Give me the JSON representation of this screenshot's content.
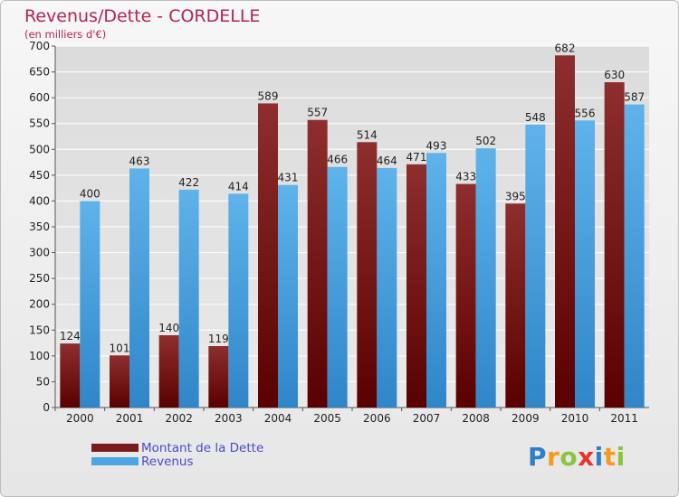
{
  "header": {
    "title": "Revenus/Dette - CORDELLE",
    "subtitle": "(en milliers d'€)"
  },
  "colors": {
    "dette": "#7a1b1b",
    "revenus": "#4aa6e3",
    "title": "#b2235a",
    "legend_text": "#4a4acb",
    "grid": "#ffffff"
  },
  "legend": {
    "position": "bottom-left",
    "items": [
      {
        "label": "Montant de la Dette",
        "color": "#7a1b1b"
      },
      {
        "label": "Revenus",
        "color": "#4aa6e3"
      }
    ]
  },
  "logo": {
    "letters": [
      {
        "char": "P",
        "color": "#2e7fc8"
      },
      {
        "char": "r",
        "color": "#f39a1f"
      },
      {
        "char": "o",
        "color": "#8bc53f"
      },
      {
        "char": "x",
        "color": "#e8332c"
      },
      {
        "char": "i",
        "color": "#2e7fc8"
      },
      {
        "char": "t",
        "color": "#f39a1f"
      },
      {
        "char": "i",
        "color": "#8bc53f"
      }
    ]
  },
  "chart_data": {
    "type": "bar",
    "categories": [
      "2000",
      "2001",
      "2002",
      "2003",
      "2004",
      "2005",
      "2006",
      "2007",
      "2008",
      "2009",
      "2010",
      "2011"
    ],
    "series": [
      {
        "name": "Montant de la Dette",
        "values": [
          124,
          101,
          140,
          119,
          589,
          557,
          514,
          471,
          433,
          395,
          682,
          630
        ]
      },
      {
        "name": "Revenus",
        "values": [
          400,
          463,
          422,
          414,
          431,
          466,
          464,
          493,
          502,
          548,
          556,
          587
        ]
      }
    ],
    "title": "Revenus/Dette - CORDELLE",
    "subtitle": "(en milliers d'€)",
    "xlabel": "",
    "ylabel": "",
    "ylim": [
      0,
      700
    ],
    "yticks": [
      0,
      50,
      100,
      150,
      200,
      250,
      300,
      350,
      400,
      450,
      500,
      550,
      600,
      650,
      700
    ],
    "grid": true,
    "legend_position": "bottom"
  }
}
